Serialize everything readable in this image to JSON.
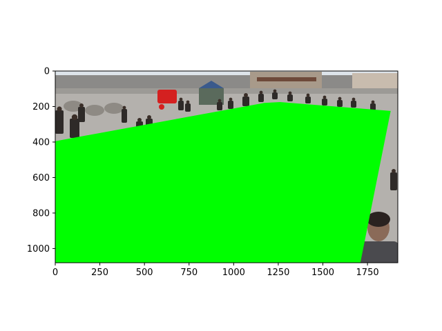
{
  "chart_data": {
    "type": "image",
    "image_size": [
      1920,
      1080
    ],
    "xlim": [
      0,
      1920
    ],
    "ylim": [
      1080,
      0
    ],
    "y_inverted": true,
    "x_ticks": [
      0,
      250,
      500,
      750,
      1000,
      1250,
      1500,
      1750
    ],
    "y_ticks": [
      0,
      200,
      400,
      600,
      800,
      1000
    ],
    "x_tick_labels": [
      "0",
      "250",
      "500",
      "750",
      "1000",
      "1250",
      "1500",
      "1750"
    ],
    "y_tick_labels": [
      "0",
      "200",
      "400",
      "600",
      "800",
      "1000"
    ],
    "grid": false,
    "overlay": {
      "shape": "polygon",
      "color": "#00ff00",
      "points": [
        [
          0,
          395
        ],
        [
          1170,
          180
        ],
        [
          1260,
          175
        ],
        [
          1880,
          225
        ],
        [
          1710,
          1080
        ],
        [
          0,
          1080
        ]
      ]
    },
    "scene": {
      "sky_color": "#dde4ea",
      "background_color": "#8b8a88",
      "ground_color": "#b4b1ad",
      "tent_color": "#3a5a8c",
      "cart_color": "#d42020",
      "person_color": "#2e2a28"
    }
  }
}
